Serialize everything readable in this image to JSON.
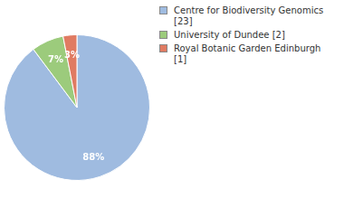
{
  "chart_data": {
    "type": "pie",
    "categories": [
      "Centre for Biodiversity Genomics [23]",
      "University of Dundee [2]",
      "Royal Botanic Garden Edinburgh [1]"
    ],
    "values": [
      88,
      7,
      3
    ],
    "value_labels": [
      "88%",
      "7%",
      "3%"
    ],
    "colors": [
      "#9fbbe0",
      "#9ccb7c",
      "#e07b62"
    ],
    "data_labels": true,
    "legend": "top-right"
  }
}
